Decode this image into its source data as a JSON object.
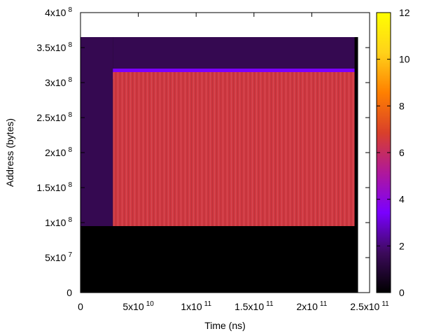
{
  "chart_data": {
    "type": "heatmap",
    "title": "",
    "xlabel": "Time (ns)",
    "ylabel": "Address (bytes)",
    "xlim": [
      0,
      250000000000
    ],
    "ylim": [
      0,
      400000000
    ],
    "x_ticks": [
      {
        "value": 0,
        "base": "0",
        "exp": ""
      },
      {
        "value": 50000000000,
        "base": "5x10",
        "exp": "10"
      },
      {
        "value": 100000000000,
        "base": "1x10",
        "exp": "11"
      },
      {
        "value": 150000000000,
        "base": "1.5x10",
        "exp": "11"
      },
      {
        "value": 200000000000,
        "base": "2x10",
        "exp": "11"
      },
      {
        "value": 250000000000,
        "base": "2.5x10",
        "exp": "11"
      }
    ],
    "y_ticks": [
      {
        "value": 0,
        "base": "0",
        "exp": ""
      },
      {
        "value": 50000000,
        "base": "5x10",
        "exp": "7"
      },
      {
        "value": 100000000,
        "base": "1x10",
        "exp": "8"
      },
      {
        "value": 150000000,
        "base": "1.5x10",
        "exp": "8"
      },
      {
        "value": 200000000,
        "base": "2x10",
        "exp": "8"
      },
      {
        "value": 250000000,
        "base": "2.5x10",
        "exp": "8"
      },
      {
        "value": 300000000,
        "base": "3x10",
        "exp": "8"
      },
      {
        "value": 350000000,
        "base": "3.5x10",
        "exp": "8"
      },
      {
        "value": 400000000,
        "base": "4x10",
        "exp": "8"
      }
    ],
    "colorbar": {
      "range": [
        0,
        12
      ],
      "ticks": [
        0,
        2,
        4,
        6,
        8,
        10,
        12
      ],
      "palette": [
        "#000000",
        "#3d0a5c",
        "#7a00ff",
        "#b0189a",
        "#d9402a",
        "#ff8000",
        "#ffd21a",
        "#ffff00"
      ]
    },
    "regions": [
      {
        "name": "background",
        "x": [
          0,
          240000000000
        ],
        "y": [
          0,
          365000000
        ],
        "level": 0
      },
      {
        "name": "early-sparse",
        "x": [
          0,
          28000000000
        ],
        "y": [
          95000000,
          365000000
        ],
        "level": 1.5
      },
      {
        "name": "upper-band",
        "x": [
          28000000000,
          237000000000
        ],
        "y": [
          315000000,
          365000000
        ],
        "level": 1.5
      },
      {
        "name": "upper-edge",
        "x": [
          28000000000,
          237000000000
        ],
        "y": [
          305000000,
          320000000
        ],
        "level": 3.5
      },
      {
        "name": "main-block",
        "x": [
          28000000000,
          237000000000
        ],
        "y": [
          95000000,
          315000000
        ],
        "level": 6.5
      }
    ],
    "grid": false,
    "legend": "colorbar-right"
  }
}
